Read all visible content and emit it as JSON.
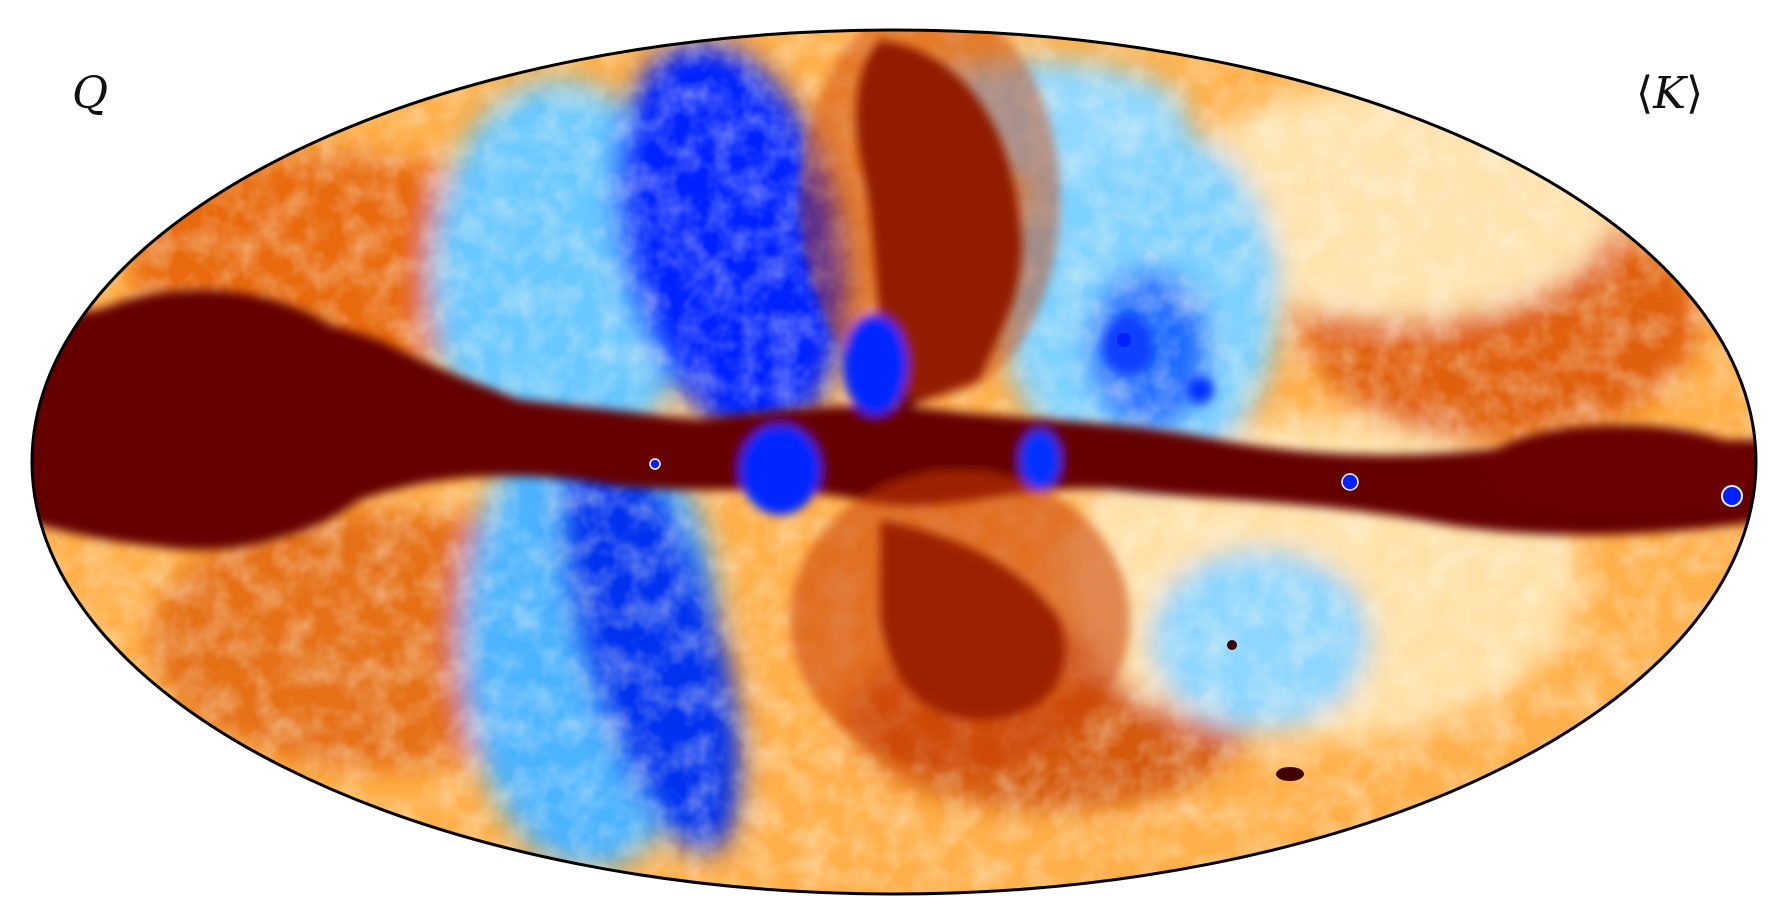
{
  "map": {
    "projection": "mollweide",
    "stokes_label": "Q",
    "band_label_open": "⟨",
    "band_label_symbol": "K",
    "band_label_close": "⟩",
    "colormap": {
      "name": "planck-diverging",
      "stops": [
        "#0000ff",
        "#00a0ff",
        "#aee6ff",
        "#fff3d6",
        "#ffc060",
        "#ff7000",
        "#c03000",
        "#600000"
      ]
    },
    "outline_color": "#000000",
    "background_color": "#ffffff"
  }
}
